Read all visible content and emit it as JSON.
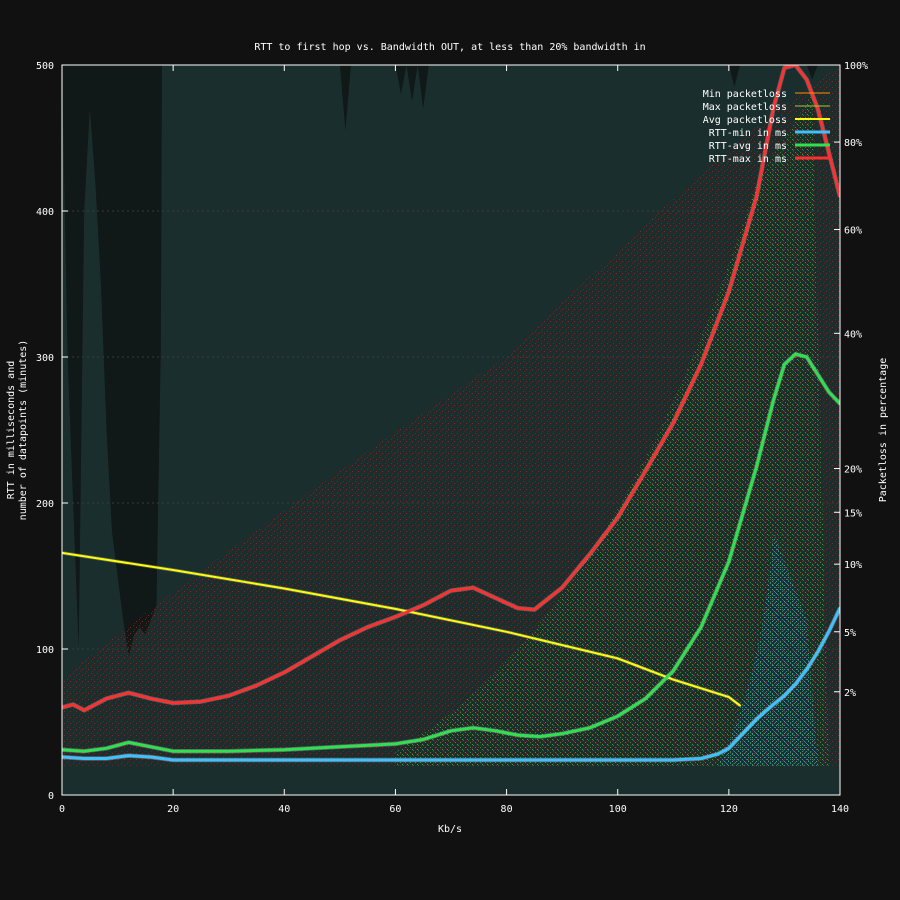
{
  "chart_data": {
    "type": "line",
    "title": "RTT to first hop vs. Bandwidth OUT, at less than 20% bandwidth in",
    "xlabel": "Kb/s",
    "ylabel_line1": "RTT in milliseconds and",
    "ylabel_line2": "number of datapoints (minutes)",
    "y2label": "Packetloss in percentage",
    "xlim": [
      0,
      140
    ],
    "ylim": [
      0,
      500
    ],
    "x_ticks": [
      "0",
      "20",
      "40",
      "60",
      "80",
      "100",
      "120",
      "140"
    ],
    "y_ticks": [
      "0",
      "100",
      "200",
      "300",
      "400",
      "500"
    ],
    "y2_ticks": [
      {
        "label": "2%",
        "pct": 2
      },
      {
        "label": "5%",
        "pct": 5
      },
      {
        "label": "10%",
        "pct": 10
      },
      {
        "label": "15%",
        "pct": 15
      },
      {
        "label": "20%",
        "pct": 20
      },
      {
        "label": "40%",
        "pct": 40
      },
      {
        "label": "60%",
        "pct": 60
      },
      {
        "label": "80%",
        "pct": 80
      },
      {
        "label": "100%",
        "pct": 100
      }
    ],
    "grid": true,
    "legend_position": "top-right",
    "legend": [
      {
        "label": "Min packetloss",
        "color": "#ff8c00",
        "width": 1
      },
      {
        "label": "Max packetloss",
        "color": "#9acd32",
        "width": 1
      },
      {
        "label": "Avg packetloss",
        "color": "#ffff00",
        "width": 2
      },
      {
        "label": "RTT-min in ms",
        "color": "#40c0ff",
        "width": 3
      },
      {
        "label": "RTT-avg in ms",
        "color": "#30e050",
        "width": 3
      },
      {
        "label": "RTT-max in ms",
        "color": "#ff3030",
        "width": 3
      }
    ],
    "datapoints_count_series": {
      "name": "number of datapoints (minutes)",
      "color": "#1b2e2e",
      "x": [
        0,
        1,
        2,
        3,
        4,
        5,
        6,
        7,
        8,
        9,
        10,
        11,
        12,
        13,
        14,
        15,
        16,
        17,
        17.8,
        18,
        50,
        51,
        52,
        60,
        61,
        62,
        63,
        64,
        65,
        66,
        67,
        120,
        121,
        122,
        134,
        135,
        136,
        140
      ],
      "values": [
        500,
        300,
        200,
        100,
        400,
        470,
        420,
        350,
        250,
        180,
        150,
        120,
        95,
        110,
        115,
        110,
        120,
        130,
        310,
        500,
        500,
        455,
        500,
        500,
        480,
        500,
        475,
        500,
        470,
        500,
        500,
        500,
        485,
        500,
        500,
        490,
        500,
        500
      ]
    },
    "series": [
      {
        "name": "RTT-max in ms",
        "color": "#ff3030",
        "x": [
          0,
          2,
          4,
          8,
          12,
          16,
          20,
          25,
          30,
          35,
          40,
          45,
          50,
          55,
          60,
          65,
          70,
          74,
          78,
          82,
          85,
          90,
          95,
          100,
          105,
          110,
          115,
          120,
          125,
          128,
          130,
          132,
          134,
          136,
          138,
          140
        ],
        "values": [
          60,
          62,
          58,
          66,
          70,
          66,
          63,
          64,
          68,
          75,
          84,
          95,
          106,
          115,
          122,
          130,
          140,
          142,
          135,
          128,
          127,
          142,
          165,
          190,
          222,
          255,
          295,
          345,
          410,
          470,
          498,
          500,
          490,
          470,
          440,
          410
        ]
      },
      {
        "name": "RTT-avg in ms",
        "color": "#30e050",
        "x": [
          0,
          4,
          8,
          12,
          16,
          20,
          30,
          40,
          50,
          60,
          65,
          70,
          74,
          78,
          82,
          86,
          90,
          95,
          100,
          105,
          110,
          115,
          120,
          125,
          128,
          130,
          132,
          134,
          136,
          138,
          140
        ],
        "values": [
          31,
          30,
          32,
          36,
          33,
          30,
          30,
          31,
          33,
          35,
          38,
          44,
          46,
          44,
          41,
          40,
          42,
          46,
          54,
          66,
          85,
          115,
          160,
          225,
          270,
          295,
          302,
          300,
          288,
          276,
          268
        ]
      },
      {
        "name": "RTT-min in ms",
        "color": "#40c0ff",
        "x": [
          0,
          4,
          8,
          12,
          16,
          20,
          40,
          60,
          80,
          100,
          110,
          115,
          118,
          120,
          122,
          125,
          128,
          130,
          132,
          134,
          136,
          138,
          140
        ],
        "values": [
          26,
          25,
          25,
          27,
          26,
          24,
          24,
          24,
          24,
          24,
          24,
          25,
          28,
          32,
          40,
          52,
          62,
          68,
          76,
          86,
          98,
          112,
          128
        ]
      }
    ],
    "packetloss_series": {
      "name": "Avg packetloss",
      "color": "#ffff00",
      "x": [
        0,
        20,
        40,
        60,
        80,
        100,
        110,
        120,
        122
      ],
      "pct": [
        11,
        9.5,
        8,
        6.5,
        5,
        3.5,
        2.5,
        1.8,
        1.5
      ]
    }
  }
}
